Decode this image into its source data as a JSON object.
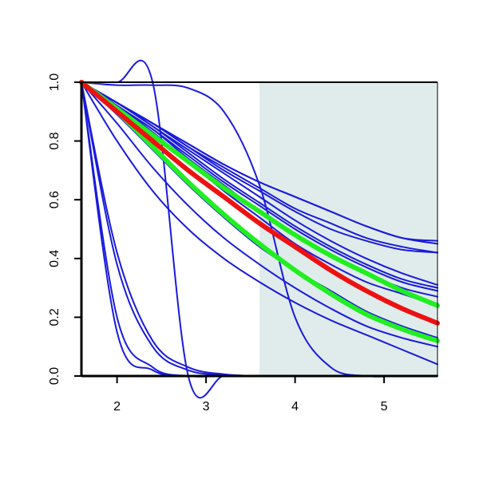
{
  "chart_data": {
    "type": "line",
    "title": "",
    "xlabel": "",
    "ylabel": "",
    "xlim": [
      1.6,
      5.6
    ],
    "ylim": [
      0,
      1
    ],
    "x_ticks": [
      2,
      3,
      4,
      5
    ],
    "x_tick_labels": [
      "2",
      "3",
      "4",
      "5"
    ],
    "y_ticks": [
      0,
      0.2,
      0.4,
      0.6,
      0.8,
      1
    ],
    "y_tick_labels": [
      "0.0",
      "0.2",
      "0.4",
      "0.6",
      "0.8",
      "1.0"
    ],
    "grid": false,
    "legend": "none",
    "shaded_region": {
      "x_from": 3.6,
      "x_to": 5.6,
      "color": "#e0ecec"
    },
    "colors": {
      "blue": "#1a1adc",
      "green": "#22ee22",
      "red": "#ee1111",
      "axis": "#000000"
    },
    "x": [
      1.6,
      2.0,
      2.4,
      2.8,
      3.2,
      3.6,
      4.0,
      4.4,
      4.8,
      5.2,
      5.6
    ],
    "series": [
      {
        "color": "blue",
        "width": "thin",
        "values": [
          1.0,
          0.93,
          0.86,
          0.79,
          0.72,
          0.66,
          0.61,
          0.56,
          0.51,
          0.47,
          0.46
        ]
      },
      {
        "color": "blue",
        "width": "thin",
        "values": [
          1.0,
          0.93,
          0.86,
          0.79,
          0.72,
          0.66,
          0.61,
          0.56,
          0.51,
          0.47,
          0.45
        ]
      },
      {
        "color": "blue",
        "width": "thin",
        "values": [
          1.0,
          0.93,
          0.86,
          0.78,
          0.71,
          0.64,
          0.57,
          0.52,
          0.47,
          0.44,
          0.42
        ]
      },
      {
        "color": "blue",
        "width": "thin",
        "values": [
          1.0,
          0.93,
          0.86,
          0.78,
          0.7,
          0.63,
          0.56,
          0.5,
          0.46,
          0.43,
          0.42
        ]
      },
      {
        "color": "blue",
        "width": "thin",
        "values": [
          1.0,
          0.93,
          0.85,
          0.77,
          0.69,
          0.61,
          0.53,
          0.46,
          0.4,
          0.35,
          0.31
        ]
      },
      {
        "color": "blue",
        "width": "thin",
        "values": [
          1.0,
          0.93,
          0.85,
          0.76,
          0.67,
          0.59,
          0.51,
          0.44,
          0.38,
          0.33,
          0.3
        ]
      },
      {
        "color": "blue",
        "width": "thin",
        "values": [
          1.0,
          0.92,
          0.84,
          0.75,
          0.66,
          0.58,
          0.5,
          0.43,
          0.37,
          0.32,
          0.29
        ]
      },
      {
        "color": "blue",
        "width": "thin",
        "values": [
          1.0,
          0.92,
          0.84,
          0.74,
          0.65,
          0.56,
          0.48,
          0.41,
          0.35,
          0.3,
          0.27
        ]
      },
      {
        "color": "blue",
        "width": "thin",
        "values": [
          1.0,
          0.92,
          0.83,
          0.73,
          0.63,
          0.54,
          0.45,
          0.38,
          0.32,
          0.28,
          0.24
        ]
      },
      {
        "color": "blue",
        "width": "thin",
        "values": [
          1.0,
          0.89,
          0.77,
          0.65,
          0.54,
          0.44,
          0.36,
          0.29,
          0.22,
          0.17,
          0.13
        ]
      },
      {
        "color": "blue",
        "width": "thin",
        "values": [
          1.0,
          0.86,
          0.71,
          0.58,
          0.47,
          0.38,
          0.3,
          0.23,
          0.17,
          0.13,
          0.1
        ]
      },
      {
        "color": "blue",
        "width": "thin",
        "values": [
          1.0,
          0.8,
          0.63,
          0.5,
          0.4,
          0.32,
          0.25,
          0.19,
          0.14,
          0.09,
          0.04
        ]
      },
      {
        "color": "blue",
        "width": "thin",
        "values": [
          1.0,
          0.99,
          0.99,
          0.98,
          0.9,
          0.65,
          0.2,
          0.03,
          0.0,
          0.0,
          0.0
        ]
      },
      {
        "color": "blue",
        "width": "thin",
        "values": [
          1.0,
          1.0,
          1.0,
          0.0,
          0.0,
          0.0,
          0.0,
          0.0,
          0.0,
          0.0,
          0.0
        ]
      },
      {
        "color": "blue",
        "width": "thin",
        "values": [
          1.0,
          0.38,
          0.1,
          0.02,
          0.004,
          0.0,
          0.0,
          0.0,
          0.0,
          0.0,
          0.0
        ]
      },
      {
        "color": "blue",
        "width": "thin",
        "values": [
          1.0,
          0.42,
          0.12,
          0.03,
          0.006,
          0.0,
          0.0,
          0.0,
          0.0,
          0.0,
          0.0
        ]
      },
      {
        "color": "blue",
        "width": "thin",
        "values": [
          1.0,
          0.15,
          0.02,
          0.0,
          0.0,
          0.0,
          0.0,
          0.0,
          0.0,
          0.0,
          0.0
        ]
      },
      {
        "color": "blue",
        "width": "thin",
        "values": [
          1.0,
          0.2,
          0.03,
          0.0,
          0.0,
          0.0,
          0.0,
          0.0,
          0.0,
          0.0,
          0.0
        ]
      },
      {
        "color": "green",
        "width": "thick",
        "values": [
          1.0,
          0.91,
          0.82,
          0.73,
          0.64,
          0.56,
          0.48,
          0.41,
          0.35,
          0.29,
          0.24
        ]
      },
      {
        "color": "green",
        "width": "thick",
        "values": [
          1.0,
          0.9,
          0.78,
          0.66,
          0.55,
          0.45,
          0.36,
          0.28,
          0.21,
          0.16,
          0.12
        ]
      },
      {
        "color": "red",
        "width": "thick",
        "values": [
          1.0,
          0.9,
          0.8,
          0.7,
          0.61,
          0.52,
          0.44,
          0.36,
          0.29,
          0.23,
          0.18
        ]
      }
    ]
  }
}
